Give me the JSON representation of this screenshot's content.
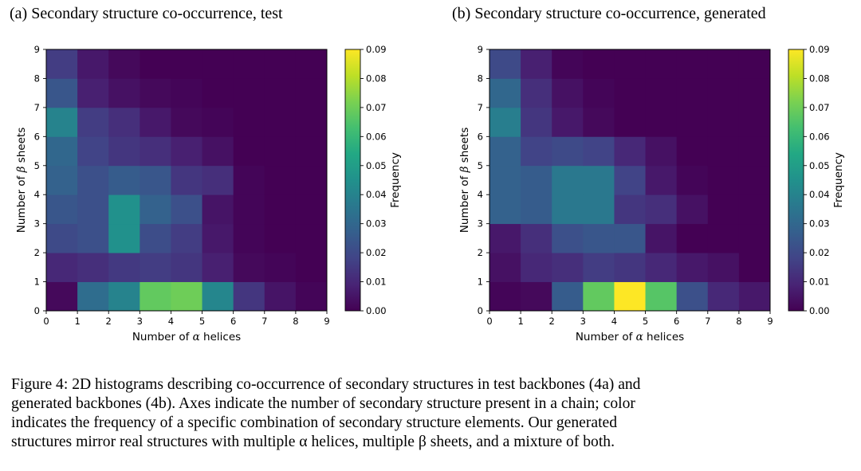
{
  "charts": [
    {
      "panel_title": "(a) Secondary structure co-occurrence, test",
      "xlabel_prefix": "Number of ",
      "xlabel_greek": "α",
      "xlabel_suffix": " helices",
      "ylabel_prefix": "Number of ",
      "ylabel_greek": "β",
      "ylabel_suffix": " sheets",
      "colorbar_label": "Frequency"
    },
    {
      "panel_title": "(b) Secondary structure co-occurrence, generated",
      "xlabel_prefix": "Number of ",
      "xlabel_greek": "α",
      "xlabel_suffix": " helices",
      "ylabel_prefix": "Number of ",
      "ylabel_greek": "β",
      "ylabel_suffix": " sheets",
      "colorbar_label": "Frequency"
    }
  ],
  "caption": {
    "lines": [
      "Figure 4: 2D histograms describing co-occurrence of secondary structures in test backbones (4a) and",
      "generated backbones (4b). Axes indicate the number of secondary structure present in a chain; color",
      "indicates the frequency of a specific combination of secondary structure elements. Our generated",
      "structures mirror real structures with multiple α helices, multiple β sheets, and a mixture of both."
    ]
  },
  "chart_data": [
    {
      "type": "heatmap",
      "title": "(a) Secondary structure co-occurrence, test",
      "xlabel": "Number of α helices",
      "ylabel": "Number of β sheets",
      "x_edges": [
        0,
        1,
        2,
        3,
        4,
        5,
        6,
        7,
        8,
        9
      ],
      "y_edges": [
        0,
        1,
        2,
        3,
        4,
        5,
        6,
        7,
        8,
        9
      ],
      "x_ticks": [
        "0",
        "1",
        "2",
        "3",
        "4",
        "5",
        "6",
        "7",
        "8",
        "9"
      ],
      "y_ticks": [
        "0",
        "1",
        "2",
        "3",
        "4",
        "5",
        "6",
        "7",
        "8",
        "9"
      ],
      "colorbar": {
        "label": "Frequency",
        "range": [
          0,
          0.09
        ],
        "ticks": [
          "0.00",
          "0.01",
          "0.02",
          "0.03",
          "0.04",
          "0.05",
          "0.06",
          "0.07",
          "0.08",
          "0.09"
        ]
      },
      "values_rows_y0_to_y8": [
        [
          0.002,
          0.032,
          0.04,
          0.068,
          0.07,
          0.041,
          0.014,
          0.005,
          0.001
        ],
        [
          0.01,
          0.012,
          0.015,
          0.016,
          0.014,
          0.008,
          0.002,
          0.001,
          0.0
        ],
        [
          0.02,
          0.022,
          0.045,
          0.021,
          0.016,
          0.006,
          0.001,
          0.0,
          0.0
        ],
        [
          0.024,
          0.022,
          0.045,
          0.028,
          0.022,
          0.005,
          0.001,
          0.0,
          0.0
        ],
        [
          0.028,
          0.022,
          0.026,
          0.024,
          0.014,
          0.012,
          0.001,
          0.0,
          0.0
        ],
        [
          0.03,
          0.018,
          0.014,
          0.012,
          0.008,
          0.004,
          0.0,
          0.0,
          0.0
        ],
        [
          0.04,
          0.016,
          0.012,
          0.006,
          0.002,
          0.001,
          0.0,
          0.0,
          0.0
        ],
        [
          0.024,
          0.008,
          0.004,
          0.002,
          0.001,
          0.0,
          0.0,
          0.0,
          0.0
        ],
        [
          0.016,
          0.006,
          0.002,
          0.0,
          0.0,
          0.0,
          0.0,
          0.0,
          0.0
        ]
      ]
    },
    {
      "type": "heatmap",
      "title": "(b) Secondary structure co-occurrence, generated",
      "xlabel": "Number of α helices",
      "ylabel": "Number of β sheets",
      "x_edges": [
        0,
        1,
        2,
        3,
        4,
        5,
        6,
        7,
        8,
        9
      ],
      "y_edges": [
        0,
        1,
        2,
        3,
        4,
        5,
        6,
        7,
        8,
        9
      ],
      "x_ticks": [
        "0",
        "1",
        "2",
        "3",
        "4",
        "5",
        "6",
        "7",
        "8",
        "9"
      ],
      "y_ticks": [
        "0",
        "1",
        "2",
        "3",
        "4",
        "5",
        "6",
        "7",
        "8",
        "9"
      ],
      "colorbar": {
        "label": "Frequency",
        "range": [
          0,
          0.09
        ],
        "ticks": [
          "0.00",
          "0.01",
          "0.02",
          "0.03",
          "0.04",
          "0.05",
          "0.06",
          "0.07",
          "0.08",
          "0.09"
        ]
      },
      "values_rows_y0_to_y8": [
        [
          0.001,
          0.002,
          0.026,
          0.068,
          0.09,
          0.066,
          0.022,
          0.01,
          0.006
        ],
        [
          0.004,
          0.01,
          0.012,
          0.016,
          0.014,
          0.01,
          0.006,
          0.004,
          0.0
        ],
        [
          0.006,
          0.012,
          0.022,
          0.024,
          0.024,
          0.005,
          0.0,
          0.0,
          0.0
        ],
        [
          0.028,
          0.026,
          0.036,
          0.036,
          0.014,
          0.012,
          0.004,
          0.0,
          0.0
        ],
        [
          0.028,
          0.026,
          0.036,
          0.036,
          0.018,
          0.006,
          0.001,
          0.0,
          0.0
        ],
        [
          0.028,
          0.018,
          0.02,
          0.018,
          0.01,
          0.004,
          0.0,
          0.0,
          0.0
        ],
        [
          0.038,
          0.014,
          0.006,
          0.002,
          0.0,
          0.0,
          0.0,
          0.0,
          0.0
        ],
        [
          0.03,
          0.012,
          0.004,
          0.001,
          0.0,
          0.0,
          0.0,
          0.0,
          0.0
        ],
        [
          0.02,
          0.008,
          0.001,
          0.0,
          0.0,
          0.0,
          0.0,
          0.0,
          0.0
        ]
      ]
    }
  ]
}
